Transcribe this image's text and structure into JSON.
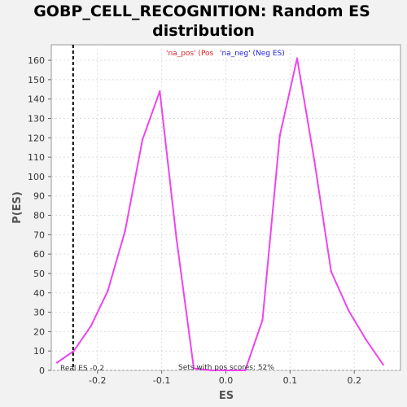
{
  "chart_data": {
    "type": "line",
    "title": "GOBP_CELL_RECOGNITION: Random ES distribution",
    "title_lines": [
      "GOBP_CELL_RECOGNITION: Random ES",
      "distribution"
    ],
    "xlabel": "ES",
    "ylabel": "P(ES)",
    "xlim": [
      -0.272,
      0.272
    ],
    "ylim": [
      0,
      168
    ],
    "x_ticks": [
      -0.2,
      -0.1,
      0.0,
      0.1,
      0.2
    ],
    "x_tick_labels": [
      "-0.2",
      "-0.1",
      "0.0",
      "0.1",
      "0.2"
    ],
    "y_ticks": [
      0,
      10,
      20,
      30,
      40,
      50,
      60,
      70,
      80,
      90,
      100,
      110,
      120,
      130,
      140,
      150,
      160
    ],
    "grid": true,
    "series": [
      {
        "color": "#ee44ee",
        "x": [
          -0.263,
          -0.237,
          -0.21,
          -0.184,
          -0.157,
          -0.13,
          -0.103,
          -0.077,
          -0.05,
          -0.023,
          0.003,
          0.03,
          0.057,
          0.084,
          0.111,
          0.138,
          0.164,
          0.191,
          0.218,
          0.245
        ],
        "y": [
          4,
          10,
          23,
          41,
          72,
          119,
          144,
          68,
          1,
          0,
          0,
          0,
          26,
          121,
          161,
          108,
          51,
          31,
          16,
          3
        ]
      }
    ],
    "real_es": {
      "x": -0.238,
      "label": "Real ES -0.2",
      "color": "#000000"
    },
    "legend": [
      {
        "text": "'na_pos' (Pos",
        "color": "#dd2222"
      },
      {
        "text": "'na_neg' (Neg ES)",
        "color": "#2222dd"
      }
    ],
    "annotation": "Sets with pos scores: 52%"
  },
  "colors": {
    "background": "#f2f2f2",
    "plot_background": "#ffffff",
    "grid": "#dddddd",
    "line": "#ee44ee"
  }
}
